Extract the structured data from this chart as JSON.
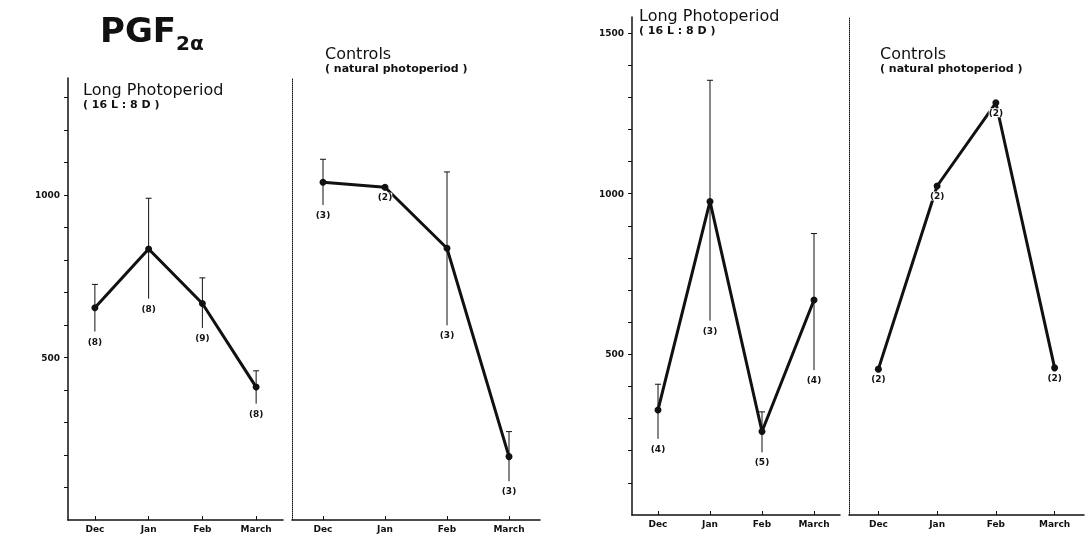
{
  "chart_data": [
    {
      "type": "line",
      "title": "Long Photoperiod",
      "subtitle": "( 16 L : 8 D )",
      "categories": [
        "Dec",
        "Jan",
        "Feb",
        "March"
      ],
      "series": [
        {
          "color": "#111111",
          "values": [
            653,
            834,
            666,
            409
          ],
          "errors": [
            [
              580,
              725
            ],
            [
              681,
              990
            ],
            [
              591,
              745
            ],
            [
              358,
              459
            ]
          ]
        }
      ],
      "ylim": [
        0,
        1360
      ],
      "yticks": [
        {
          "value": 100,
          "label": null
        },
        {
          "value": 200,
          "label": null
        },
        {
          "value": 300,
          "label": null
        },
        {
          "value": 400,
          "label": null
        },
        500,
        {
          "value": 600,
          "label": null
        },
        {
          "value": 700,
          "label": null
        },
        {
          "value": 800,
          "label": null
        },
        {
          "value": 900,
          "label": null
        },
        1000,
        {
          "value": 1100,
          "label": null
        },
        {
          "value": 1200,
          "label": null
        },
        {
          "value": 1300,
          "label": null
        }
      ],
      "marker": "circle",
      "line_style": "solid",
      "annotations": [
        "PGF$_{2α}$",
        "(8)",
        "(8)",
        "(9)",
        "(8)"
      ]
    },
    {
      "type": "line",
      "title": "Controls",
      "subtitle": "( natural photoperiod )",
      "categories": [
        "Dec",
        "Jan",
        "Feb",
        "March"
      ],
      "series": [
        {
          "color": "#111111",
          "values": [
            1039,
            1024,
            836,
            195
          ],
          "errors": [
            [
              969,
              1110
            ],
            null,
            [
              599,
              1071
            ],
            [
              119,
              272
            ]
          ]
        }
      ],
      "ylim": [
        0,
        1360
      ],
      "tick_labels": "x",
      "marker": "circle",
      "line_style": "solid",
      "annotations": [
        "(3)",
        "(2)",
        "(3)",
        "(3)"
      ]
    },
    {
      "type": "line",
      "title": "Long Photoperiod",
      "subtitle": "( 16 L : 8 D )",
      "categories": [
        "Dec",
        "Jan",
        "Feb",
        "March"
      ],
      "series": [
        {
          "color": "#111111",
          "values": [
            327,
            976,
            260,
            669
          ],
          "errors": [
            [
              237,
              407
            ],
            [
              605,
              1353
            ],
            [
              195,
              321
            ],
            [
              451,
              876
            ]
          ]
        }
      ],
      "ylim": [
        0,
        1550
      ],
      "yticks": [
        {
          "value": 100,
          "label": null
        },
        {
          "value": 200,
          "label": null
        },
        {
          "value": 300,
          "label": null
        },
        {
          "value": 400,
          "label": null
        },
        500,
        {
          "value": 600,
          "label": null
        },
        {
          "value": 700,
          "label": null
        },
        {
          "value": 800,
          "label": null
        },
        {
          "value": 900,
          "label": null
        },
        1000,
        {
          "value": 1100,
          "label": null
        },
        {
          "value": 1200,
          "label": null
        },
        {
          "value": 1300,
          "label": null
        },
        {
          "value": 1400,
          "label": null
        },
        1500
      ],
      "marker": "circle",
      "line_style": "solid",
      "annotations": [
        "(4)",
        "(3)",
        "(5)",
        "(4)"
      ]
    },
    {
      "type": "line",
      "title": "Controls",
      "subtitle": "( natural photoperiod )",
      "categories": [
        "Dec",
        "Jan",
        "Feb",
        "March"
      ],
      "series": [
        {
          "color": "#111111",
          "values": [
            454,
            1024,
            1283,
            458
          ]
        }
      ],
      "ylim": [
        0,
        1550
      ],
      "tick_labels": "x",
      "marker": "circle",
      "line_style": "solid",
      "annotations": [
        "(2)",
        "(2)",
        "(2)",
        "(2)"
      ]
    }
  ]
}
